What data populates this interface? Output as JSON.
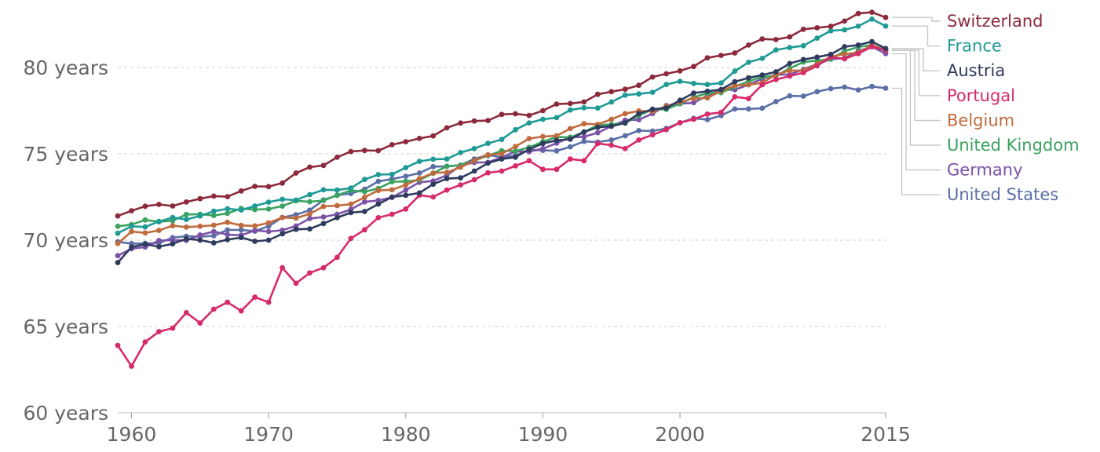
{
  "chart_data": {
    "type": "line",
    "title": "",
    "xlabel": "",
    "ylabel": "",
    "xlim": [
      1959,
      2015
    ],
    "ylim": [
      60,
      83
    ],
    "grid": true,
    "legend": "right",
    "x_ticks": [
      {
        "value": 1960,
        "label": "1960"
      },
      {
        "value": 1970,
        "label": "1970"
      },
      {
        "value": 1980,
        "label": "1980"
      },
      {
        "value": 1990,
        "label": "1990"
      },
      {
        "value": 2000,
        "label": "2000"
      },
      {
        "value": 2015,
        "label": "2015"
      }
    ],
    "y_ticks": [
      {
        "value": 60,
        "label": "60 years"
      },
      {
        "value": 65,
        "label": "65 years"
      },
      {
        "value": 70,
        "label": "70 years"
      },
      {
        "value": 75,
        "label": "75 years"
      },
      {
        "value": 80,
        "label": "80 years"
      }
    ],
    "series": [
      {
        "name": "United States",
        "color": "#5b6fa6",
        "anchors": [
          [
            1959,
            69.9
          ],
          [
            1960,
            69.8
          ],
          [
            1965,
            70.2
          ],
          [
            1970,
            70.8
          ],
          [
            1975,
            72.6
          ],
          [
            1980,
            73.7
          ],
          [
            1985,
            74.7
          ],
          [
            1990,
            75.2
          ],
          [
            1995,
            75.8
          ],
          [
            2000,
            76.8
          ],
          [
            2005,
            77.6
          ],
          [
            2010,
            78.6
          ],
          [
            2014,
            78.9
          ],
          [
            2015,
            78.8
          ]
        ]
      },
      {
        "name": "Germany",
        "color": "#7b52a8",
        "anchors": [
          [
            1959,
            69.1
          ],
          [
            1960,
            69.5
          ],
          [
            1965,
            70.3
          ],
          [
            1970,
            70.5
          ],
          [
            1975,
            71.5
          ],
          [
            1980,
            72.9
          ],
          [
            1985,
            74.5
          ],
          [
            1990,
            75.3
          ],
          [
            1995,
            76.6
          ],
          [
            2000,
            77.9
          ],
          [
            2005,
            79.0
          ],
          [
            2010,
            80.2
          ],
          [
            2014,
            81.2
          ],
          [
            2015,
            80.8
          ]
        ]
      },
      {
        "name": "United Kingdom",
        "color": "#3aa360",
        "anchors": [
          [
            1959,
            70.8
          ],
          [
            1960,
            70.9
          ],
          [
            1965,
            71.5
          ],
          [
            1970,
            71.8
          ],
          [
            1975,
            72.6
          ],
          [
            1980,
            73.4
          ],
          [
            1985,
            74.6
          ],
          [
            1990,
            75.7
          ],
          [
            1995,
            76.7
          ],
          [
            2000,
            77.9
          ],
          [
            2005,
            79.2
          ],
          [
            2010,
            80.4
          ],
          [
            2014,
            81.3
          ],
          [
            2015,
            81.0
          ]
        ]
      },
      {
        "name": "Belgium",
        "color": "#bf6b3e",
        "anchors": [
          [
            1959,
            69.8
          ],
          [
            1960,
            70.5
          ],
          [
            1965,
            70.8
          ],
          [
            1970,
            71.0
          ],
          [
            1975,
            72.0
          ],
          [
            1980,
            73.2
          ],
          [
            1985,
            74.6
          ],
          [
            1990,
            76.0
          ],
          [
            1995,
            77.0
          ],
          [
            2000,
            78.0
          ],
          [
            2005,
            79.0
          ],
          [
            2010,
            80.2
          ],
          [
            2014,
            81.3
          ],
          [
            2015,
            81.0
          ]
        ]
      },
      {
        "name": "Portugal",
        "color": "#d62a6b",
        "anchors": [
          [
            1959,
            63.9
          ],
          [
            1960,
            62.7
          ],
          [
            1961,
            64.1
          ],
          [
            1962,
            64.7
          ],
          [
            1963,
            64.9
          ],
          [
            1964,
            65.8
          ],
          [
            1965,
            65.2
          ],
          [
            1966,
            66.0
          ],
          [
            1967,
            66.4
          ],
          [
            1968,
            65.9
          ],
          [
            1969,
            66.7
          ],
          [
            1970,
            66.4
          ],
          [
            1971,
            68.4
          ],
          [
            1972,
            67.5
          ],
          [
            1973,
            68.1
          ],
          [
            1974,
            68.4
          ],
          [
            1975,
            69.0
          ],
          [
            1976,
            70.1
          ],
          [
            1977,
            70.6
          ],
          [
            1978,
            71.3
          ],
          [
            1979,
            71.5
          ],
          [
            1980,
            71.8
          ],
          [
            1981,
            72.6
          ],
          [
            1982,
            72.5
          ],
          [
            1983,
            72.9
          ],
          [
            1984,
            73.2
          ],
          [
            1985,
            73.5
          ],
          [
            1986,
            73.9
          ],
          [
            1987,
            74.0
          ],
          [
            1988,
            74.3
          ],
          [
            1989,
            74.6
          ],
          [
            1990,
            74.1
          ],
          [
            1991,
            74.1
          ],
          [
            1992,
            74.7
          ],
          [
            1993,
            74.6
          ],
          [
            1994,
            75.6
          ],
          [
            1995,
            75.5
          ],
          [
            1996,
            75.3
          ],
          [
            1997,
            75.8
          ],
          [
            1998,
            76.1
          ],
          [
            1999,
            76.4
          ],
          [
            2000,
            76.8
          ],
          [
            2001,
            77.0
          ],
          [
            2002,
            77.3
          ],
          [
            2003,
            77.4
          ],
          [
            2004,
            78.3
          ],
          [
            2005,
            78.2
          ],
          [
            2006,
            79.0
          ],
          [
            2007,
            79.3
          ],
          [
            2008,
            79.5
          ],
          [
            2009,
            79.7
          ],
          [
            2010,
            80.1
          ],
          [
            2011,
            80.6
          ],
          [
            2012,
            80.5
          ],
          [
            2013,
            80.8
          ],
          [
            2014,
            81.2
          ],
          [
            2015,
            81.0
          ]
        ]
      },
      {
        "name": "Austria",
        "color": "#2e3b5e",
        "anchors": [
          [
            1959,
            68.7
          ],
          [
            1960,
            69.6
          ],
          [
            1965,
            70.0
          ],
          [
            1970,
            70.0
          ],
          [
            1975,
            71.3
          ],
          [
            1980,
            72.6
          ],
          [
            1985,
            74.0
          ],
          [
            1990,
            75.6
          ],
          [
            1995,
            76.6
          ],
          [
            2000,
            78.1
          ],
          [
            2005,
            79.4
          ],
          [
            2010,
            80.6
          ],
          [
            2014,
            81.5
          ],
          [
            2015,
            81.1
          ]
        ]
      },
      {
        "name": "France",
        "color": "#1f9a95",
        "anchors": [
          [
            1959,
            70.4
          ],
          [
            1960,
            70.8
          ],
          [
            1965,
            71.4
          ],
          [
            1970,
            72.2
          ],
          [
            1975,
            72.9
          ],
          [
            1980,
            74.2
          ],
          [
            1985,
            75.3
          ],
          [
            1990,
            77.0
          ],
          [
            1995,
            78.0
          ],
          [
            2000,
            79.2
          ],
          [
            2003,
            79.1
          ],
          [
            2005,
            80.3
          ],
          [
            2010,
            81.7
          ],
          [
            2014,
            82.8
          ],
          [
            2015,
            82.4
          ]
        ]
      },
      {
        "name": "Switzerland",
        "color": "#8c2a3c",
        "anchors": [
          [
            1959,
            71.4
          ],
          [
            1960,
            71.7
          ],
          [
            1965,
            72.4
          ],
          [
            1970,
            73.1
          ],
          [
            1975,
            74.8
          ],
          [
            1980,
            75.7
          ],
          [
            1985,
            76.9
          ],
          [
            1990,
            77.5
          ],
          [
            1995,
            78.6
          ],
          [
            2000,
            79.8
          ],
          [
            2005,
            81.3
          ],
          [
            2010,
            82.3
          ],
          [
            2014,
            83.2
          ],
          [
            2015,
            82.9
          ]
        ]
      }
    ]
  }
}
